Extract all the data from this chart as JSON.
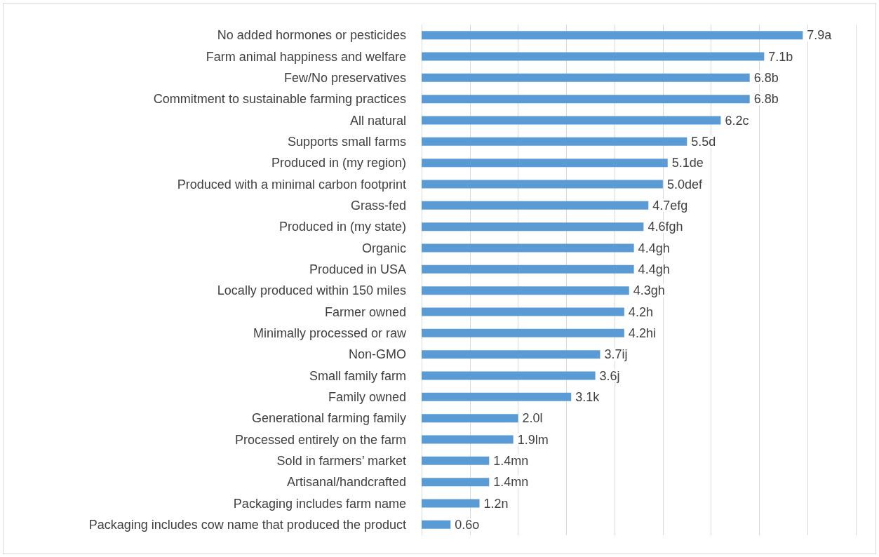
{
  "chart_data": {
    "type": "bar",
    "orientation": "horizontal",
    "categories": [
      "No added hormones or pesticides",
      "Farm animal happiness and welfare",
      "Few/No preservatives",
      "Commitment to sustainable farming practices",
      "All natural",
      "Supports small farms",
      "Produced in (my region)",
      "Produced with a minimal carbon footprint",
      "Grass-fed",
      "Produced in (my state)",
      "Organic",
      "Produced in USA",
      "Locally produced within 150 miles",
      "Farmer owned",
      "Minimally processed or raw",
      "Non-GMO",
      "Small family farm",
      "Family owned",
      "Generational farming family",
      "Processed entirely on the farm",
      "Sold in farmers’ market",
      "Artisanal/handcrafted",
      "Packaging includes farm name",
      "Packaging includes cow name that produced the product"
    ],
    "values": [
      7.9,
      7.1,
      6.8,
      6.8,
      6.2,
      5.5,
      5.1,
      5.0,
      4.7,
      4.6,
      4.4,
      4.4,
      4.3,
      4.2,
      4.2,
      3.7,
      3.6,
      3.1,
      2.0,
      1.9,
      1.4,
      1.4,
      1.2,
      0.6
    ],
    "value_labels": [
      "7.9a",
      "7.1b",
      "6.8b",
      "6.8b",
      "6.2c",
      "5.5d",
      "5.1de",
      "5.0def",
      "4.7efg",
      "4.6fgh",
      "4.4gh",
      "4.4gh",
      "4.3gh",
      "4.2h",
      "4.2hi",
      "3.7ij",
      "3.6j",
      "3.1k",
      "2.0l",
      "1.9lm",
      "1.4mn",
      "1.4mn",
      "1.2n",
      "0.6o"
    ],
    "color": "#5b9bd5",
    "xlim": [
      0,
      9
    ],
    "xticks": [
      {
        "value": 0,
        "label": null
      },
      {
        "value": 1,
        "label": null
      },
      {
        "value": 2,
        "label": null
      },
      {
        "value": 3,
        "label": null
      },
      {
        "value": 4,
        "label": null
      },
      {
        "value": 5,
        "label": null
      },
      {
        "value": 6,
        "label": null
      },
      {
        "value": 7,
        "label": null
      },
      {
        "value": 8,
        "label": null
      },
      {
        "value": 9,
        "label": null
      }
    ],
    "grid": "x",
    "tick_labels": "y"
  }
}
